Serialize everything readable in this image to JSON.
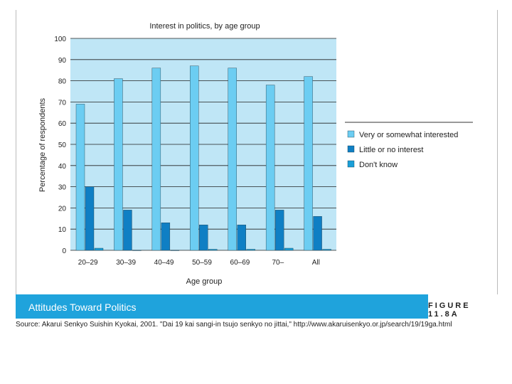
{
  "chart_data": {
    "type": "bar",
    "title": "Interest in politics, by age group",
    "xlabel": "Age group",
    "ylabel": "Percentage of respondents",
    "ylim": [
      0,
      100
    ],
    "yticks": [
      "0",
      "10",
      "20",
      "30",
      "40",
      "50",
      "60",
      "70",
      "80",
      "90",
      "100"
    ],
    "categories": [
      "20–29",
      "30–39",
      "40–49",
      "50–59",
      "60–69",
      "70–",
      "All"
    ],
    "series": [
      {
        "name": "Very or somewhat interested",
        "color": "#6ccdf2",
        "values": [
          69,
          81,
          86,
          87,
          86,
          78,
          82
        ]
      },
      {
        "name": "Little or no interest",
        "color": "#0f7fc4",
        "values": [
          30,
          19,
          13,
          12,
          12,
          19,
          16
        ]
      },
      {
        "name": "Don't know",
        "color": "#1a9fd8",
        "values": [
          1,
          0,
          0,
          0.5,
          0.5,
          1,
          0.5
        ]
      }
    ],
    "grid": true,
    "legend_position": "right",
    "plot_background": "#bfe6f6"
  },
  "banner": {
    "title": "Attitudes Toward Politics",
    "figure_label": "FIGURE 11.8A"
  },
  "source": "Source: Akarui Senkyo Suishin Kyokai, 2001. \"Dai 19 kai sangi-in tsujo senkyo no jittai,\" http://www.akaruisenkyo.or.jp/search/19/19ga.html"
}
